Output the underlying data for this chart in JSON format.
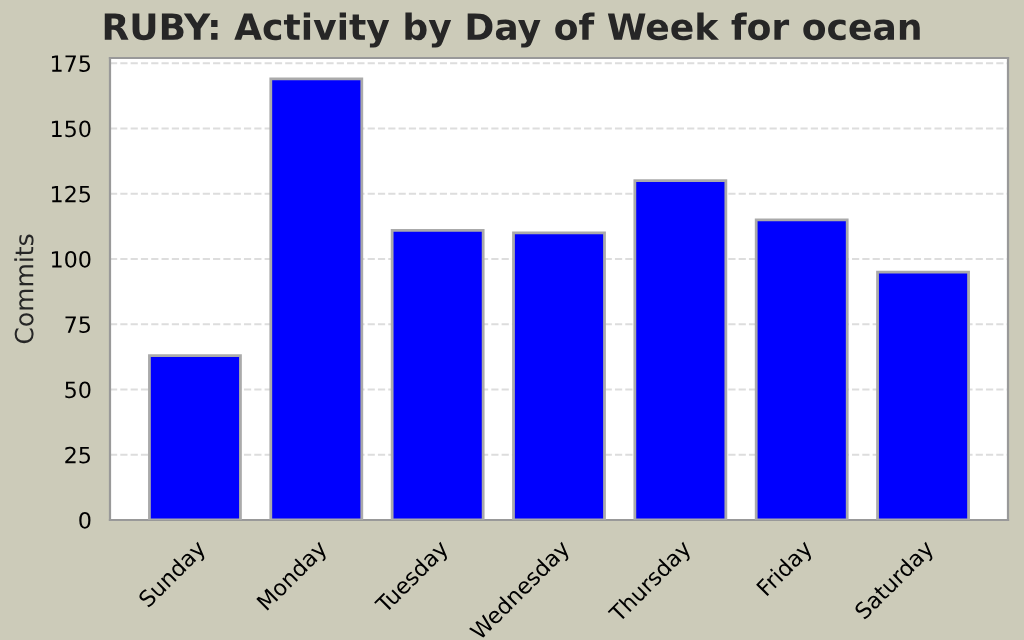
{
  "chart_data": {
    "type": "bar",
    "title": "RUBY: Activity by Day of Week for ocean",
    "ylabel": "Commits",
    "categories": [
      "Sunday",
      "Monday",
      "Tuesday",
      "Wednesday",
      "Thursday",
      "Friday",
      "Saturday"
    ],
    "values": [
      63,
      169,
      111,
      110,
      130,
      115,
      95
    ],
    "color": "#0000ff",
    "ylim": [
      0,
      177
    ],
    "yticks": [
      0,
      25,
      50,
      75,
      100,
      125,
      150,
      175
    ],
    "grid": "y",
    "legend": false
  }
}
